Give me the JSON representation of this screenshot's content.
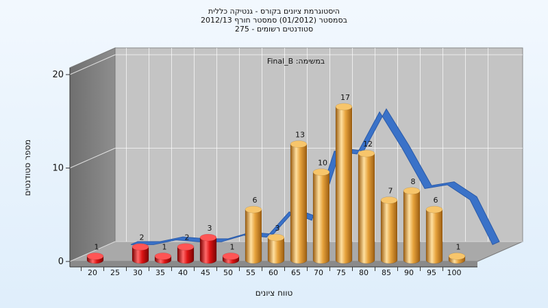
{
  "chart_data": {
    "type": "bar",
    "title_lines": [
      "היסטוגרמת ציונים בקורס - גנטיקה כללית",
      "בסמסטר  (01/2012)  סמסטר חורף 2012/13",
      "סטודנטים רשומים - 275"
    ],
    "inner_label": "Final_B :במשימה",
    "xlabel": "טווח ציונים",
    "ylabel": "מספר סטודנטים",
    "x_ticks": [
      "20",
      "25",
      "30",
      "35",
      "40",
      "45",
      "50",
      "55",
      "60",
      "65",
      "70",
      "75",
      "80",
      "85",
      "90",
      "95",
      "100"
    ],
    "y_ticks": [
      "0",
      "10",
      "20"
    ],
    "ylim": [
      0,
      20
    ],
    "bars": [
      {
        "x": 20,
        "value": 1
      },
      {
        "x": 30,
        "value": 2
      },
      {
        "x": 35,
        "value": 1
      },
      {
        "x": 40,
        "value": 2
      },
      {
        "x": 45,
        "value": 3
      },
      {
        "x": 50,
        "value": 1
      },
      {
        "x": 55,
        "value": 6
      },
      {
        "x": 60,
        "value": 3
      },
      {
        "x": 65,
        "value": 13
      },
      {
        "x": 70,
        "value": 10
      },
      {
        "x": 75,
        "value": 17
      },
      {
        "x": 80,
        "value": 12
      },
      {
        "x": 85,
        "value": 7
      },
      {
        "x": 90,
        "value": 8
      },
      {
        "x": 95,
        "value": 6
      },
      {
        "x": 100,
        "value": 1
      }
    ],
    "threshold": 55,
    "colors": {
      "below": "#dd1515",
      "above": "#e6a23c",
      "curve": "#3a72c8",
      "wall": "#8e8e8e",
      "back_wall": "#c4c4c4"
    },
    "curve": {
      "type": "area",
      "points": [
        {
          "x": 20,
          "y": 0
        },
        {
          "x": 25,
          "y": 0
        },
        {
          "x": 30,
          "y": 0.5
        },
        {
          "x": 35,
          "y": 0.3
        },
        {
          "x": 40,
          "y": 0.3
        },
        {
          "x": 45,
          "y": 1
        },
        {
          "x": 50,
          "y": 0.8
        },
        {
          "x": 55,
          "y": 3.5
        },
        {
          "x": 60,
          "y": 2.6
        },
        {
          "x": 65,
          "y": 10
        },
        {
          "x": 70,
          "y": 9.7
        },
        {
          "x": 75,
          "y": 14.2
        },
        {
          "x": 80,
          "y": 10.3
        },
        {
          "x": 85,
          "y": 6
        },
        {
          "x": 90,
          "y": 6.4
        },
        {
          "x": 95,
          "y": 4.8
        },
        {
          "x": 100,
          "y": 0
        }
      ]
    },
    "grid": true,
    "legend": "none"
  }
}
